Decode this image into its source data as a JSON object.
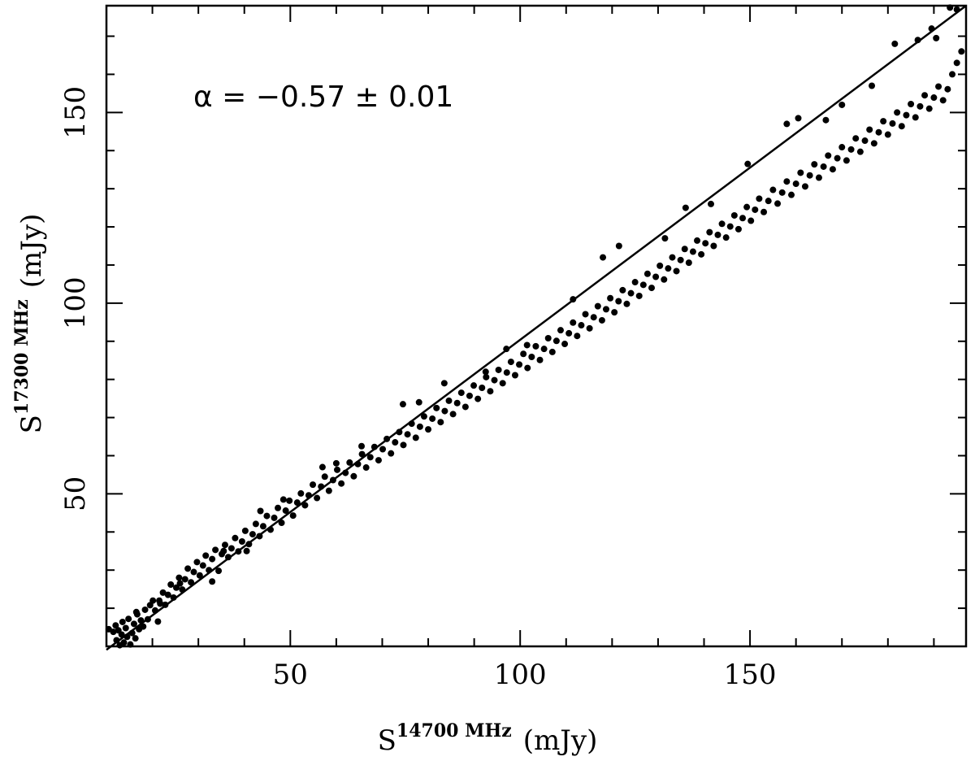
{
  "chart_data": {
    "type": "scatter",
    "title": "",
    "xlabel": {
      "base": "S",
      "superscript": "14700 MHz",
      "unit": "(mJy)"
    },
    "ylabel": {
      "base": "S",
      "superscript": "17300 MHz",
      "unit": "(mJy)"
    },
    "xlim": [
      10,
      197
    ],
    "ylim": [
      10,
      178
    ],
    "x_major_ticks": [
      50,
      100,
      150
    ],
    "x_tick_labels": [
      "50",
      "100",
      "150"
    ],
    "y_major_ticks": [
      50,
      100,
      150
    ],
    "y_tick_labels": [
      "50",
      "100",
      "150"
    ],
    "minor_tick_step": 10,
    "grid": false,
    "annotation": "α = −0.57 ± 0.01",
    "fit_line": {
      "x": [
        10,
        197
      ],
      "y": [
        9.1,
        178
      ]
    },
    "series": [
      {
        "marker": "dot",
        "color": "#000000",
        "points": [
          [
            10.5,
            14.5
          ],
          [
            11.5,
            13.8
          ],
          [
            12.0,
            15.5
          ],
          [
            12.2,
            11.6
          ],
          [
            12.6,
            14.2
          ],
          [
            12.9,
            10.3
          ],
          [
            13.3,
            13.1
          ],
          [
            13.5,
            16.4
          ],
          [
            13.8,
            11.0
          ],
          [
            14.2,
            14.8
          ],
          [
            14.5,
            12.5
          ],
          [
            14.8,
            17.2
          ],
          [
            15.2,
            10.5
          ],
          [
            15.6,
            13.5
          ],
          [
            16.0,
            15.9
          ],
          [
            16.3,
            12.1
          ],
          [
            16.7,
            18.4
          ],
          [
            17.1,
            14.5
          ],
          [
            17.5,
            16.8
          ],
          [
            18.0,
            15.2
          ],
          [
            18.4,
            19.6
          ],
          [
            19.0,
            17.1
          ],
          [
            19.5,
            20.8
          ],
          [
            20.1,
            22.0
          ],
          [
            20.6,
            19.4
          ],
          [
            21.2,
            16.5
          ],
          [
            21.7,
            21.2
          ],
          [
            22.3,
            24.1
          ],
          [
            22.8,
            20.9
          ],
          [
            23.4,
            23.5
          ],
          [
            24.0,
            26.2
          ],
          [
            24.6,
            22.8
          ],
          [
            25.2,
            25.4
          ],
          [
            25.8,
            28.0
          ],
          [
            26.5,
            24.9
          ],
          [
            27.1,
            27.6
          ],
          [
            27.7,
            30.4
          ],
          [
            28.4,
            26.8
          ],
          [
            29.0,
            29.5
          ],
          [
            29.7,
            32.1
          ],
          [
            30.3,
            28.6
          ],
          [
            31.0,
            31.2
          ],
          [
            31.6,
            33.8
          ],
          [
            32.3,
            30.0
          ],
          [
            33.0,
            32.9
          ],
          [
            33.7,
            35.3
          ],
          [
            34.4,
            29.8
          ],
          [
            35.1,
            34.2
          ],
          [
            35.8,
            36.6
          ],
          [
            36.5,
            33.4
          ],
          [
            37.2,
            35.7
          ],
          [
            38.0,
            38.4
          ],
          [
            38.7,
            34.9
          ],
          [
            39.5,
            37.5
          ],
          [
            40.2,
            40.3
          ],
          [
            41.0,
            36.8
          ],
          [
            41.8,
            39.4
          ],
          [
            42.5,
            42.1
          ],
          [
            43.3,
            38.9
          ],
          [
            44.1,
            41.5
          ],
          [
            44.9,
            44.2
          ],
          [
            45.7,
            40.6
          ],
          [
            46.5,
            43.7
          ],
          [
            47.3,
            46.3
          ],
          [
            48.1,
            42.4
          ],
          [
            49.0,
            45.6
          ],
          [
            49.8,
            48.2
          ],
          [
            50.6,
            44.3
          ],
          [
            51.5,
            47.7
          ],
          [
            52.3,
            50.1
          ],
          [
            53.2,
            47.0
          ],
          [
            54.0,
            49.6
          ],
          [
            54.9,
            52.4
          ],
          [
            55.8,
            48.9
          ],
          [
            56.7,
            51.9
          ],
          [
            57.5,
            54.5
          ],
          [
            58.4,
            50.8
          ],
          [
            59.3,
            53.6
          ],
          [
            60.2,
            56.3
          ],
          [
            61.1,
            52.7
          ],
          [
            62.0,
            55.5
          ],
          [
            62.9,
            58.2
          ],
          [
            63.8,
            54.6
          ],
          [
            64.7,
            57.8
          ],
          [
            65.6,
            60.4
          ],
          [
            66.5,
            56.9
          ],
          [
            67.4,
            59.6
          ],
          [
            68.3,
            62.3
          ],
          [
            69.2,
            58.8
          ],
          [
            70.1,
            61.7
          ],
          [
            71.0,
            64.4
          ],
          [
            71.9,
            60.6
          ],
          [
            72.8,
            63.5
          ],
          [
            73.7,
            66.2
          ],
          [
            74.6,
            62.8
          ],
          [
            75.5,
            65.6
          ],
          [
            76.4,
            68.4
          ],
          [
            77.3,
            64.7
          ],
          [
            78.2,
            67.6
          ],
          [
            79.1,
            70.3
          ],
          [
            80.0,
            66.9
          ],
          [
            80.9,
            69.7
          ],
          [
            81.8,
            72.5
          ],
          [
            82.7,
            68.8
          ],
          [
            83.6,
            71.7
          ],
          [
            84.5,
            74.4
          ],
          [
            85.4,
            70.9
          ],
          [
            86.3,
            73.8
          ],
          [
            87.2,
            76.5
          ],
          [
            88.1,
            72.8
          ],
          [
            89.0,
            75.7
          ],
          [
            89.9,
            78.4
          ],
          [
            90.8,
            74.9
          ],
          [
            91.7,
            77.8
          ],
          [
            92.6,
            80.6
          ],
          [
            93.5,
            76.9
          ],
          [
            94.4,
            79.8
          ],
          [
            95.3,
            82.5
          ],
          [
            96.2,
            79.0
          ],
          [
            97.1,
            81.8
          ],
          [
            98.0,
            84.6
          ],
          [
            98.9,
            81.1
          ],
          [
            99.8,
            83.9
          ],
          [
            100.7,
            86.7
          ],
          [
            101.6,
            83.0
          ],
          [
            102.5,
            85.9
          ],
          [
            103.4,
            88.7
          ],
          [
            104.3,
            85.1
          ],
          [
            105.2,
            88.0
          ],
          [
            106.1,
            90.8
          ],
          [
            107.0,
            87.2
          ],
          [
            107.9,
            90.1
          ],
          [
            108.8,
            92.9
          ],
          [
            109.7,
            89.3
          ],
          [
            110.6,
            92.1
          ],
          [
            111.5,
            94.9
          ],
          [
            112.4,
            91.4
          ],
          [
            113.3,
            94.2
          ],
          [
            114.2,
            97.1
          ],
          [
            115.1,
            93.4
          ],
          [
            116.0,
            96.3
          ],
          [
            116.9,
            99.2
          ],
          [
            117.8,
            95.5
          ],
          [
            118.7,
            98.4
          ],
          [
            119.6,
            101.3
          ],
          [
            120.5,
            97.6
          ],
          [
            121.4,
            100.5
          ],
          [
            122.3,
            103.4
          ],
          [
            123.2,
            99.8
          ],
          [
            124.1,
            102.6
          ],
          [
            125.0,
            105.5
          ],
          [
            125.9,
            101.9
          ],
          [
            126.8,
            104.8
          ],
          [
            127.7,
            107.7
          ],
          [
            128.6,
            104.0
          ],
          [
            129.5,
            106.9
          ],
          [
            130.4,
            109.8
          ],
          [
            131.3,
            106.2
          ],
          [
            132.2,
            109.1
          ],
          [
            133.1,
            112.0
          ],
          [
            134.0,
            108.4
          ],
          [
            134.9,
            111.3
          ],
          [
            135.8,
            114.2
          ],
          [
            136.7,
            110.6
          ],
          [
            137.6,
            113.5
          ],
          [
            138.5,
            116.4
          ],
          [
            139.4,
            112.8
          ],
          [
            140.3,
            115.7
          ],
          [
            141.2,
            118.6
          ],
          [
            142.1,
            115.0
          ],
          [
            143.0,
            117.9
          ],
          [
            143.9,
            120.8
          ],
          [
            144.8,
            117.2
          ],
          [
            145.7,
            120.1
          ],
          [
            146.6,
            123.0
          ],
          [
            147.5,
            119.4
          ],
          [
            148.4,
            122.3
          ],
          [
            149.3,
            125.2
          ],
          [
            150.2,
            121.6
          ],
          [
            151.1,
            124.5
          ],
          [
            152.0,
            127.4
          ],
          [
            153.0,
            123.9
          ],
          [
            154.0,
            126.8
          ],
          [
            155.0,
            129.7
          ],
          [
            156.0,
            126.1
          ],
          [
            157.0,
            129.0
          ],
          [
            158.0,
            131.9
          ],
          [
            159.0,
            128.4
          ],
          [
            160.0,
            131.3
          ],
          [
            161.0,
            134.2
          ],
          [
            162.0,
            130.6
          ],
          [
            163.0,
            133.5
          ],
          [
            164.0,
            136.4
          ],
          [
            165.0,
            132.9
          ],
          [
            166.0,
            135.8
          ],
          [
            167.0,
            138.7
          ],
          [
            168.0,
            135.1
          ],
          [
            169.0,
            138.0
          ],
          [
            170.0,
            140.9
          ],
          [
            171.0,
            137.4
          ],
          [
            172.0,
            140.3
          ],
          [
            173.0,
            143.2
          ],
          [
            174.0,
            139.7
          ],
          [
            175.0,
            142.6
          ],
          [
            176.0,
            145.5
          ],
          [
            177.0,
            141.9
          ],
          [
            178.0,
            144.8
          ],
          [
            179.0,
            147.7
          ],
          [
            180.0,
            144.2
          ],
          [
            181.0,
            147.1
          ],
          [
            182.0,
            150.0
          ],
          [
            183.0,
            146.4
          ],
          [
            184.0,
            149.3
          ],
          [
            185.0,
            152.2
          ],
          [
            186.0,
            148.7
          ],
          [
            187.0,
            151.6
          ],
          [
            188.0,
            154.5
          ],
          [
            189.0,
            151.0
          ],
          [
            190.0,
            153.9
          ],
          [
            191.0,
            156.8
          ],
          [
            192.0,
            153.2
          ],
          [
            193.0,
            156.1
          ],
          [
            194.0,
            160.0
          ],
          [
            195.0,
            163.0
          ],
          [
            196.0,
            166.0
          ],
          [
            189.5,
            172.0
          ],
          [
            190.5,
            169.5
          ],
          [
            195.0,
            177.0
          ],
          [
            193.5,
            177.5
          ],
          [
            181.5,
            168.0
          ],
          [
            176.5,
            157.0
          ],
          [
            166.5,
            148.0
          ],
          [
            160.5,
            148.5
          ],
          [
            149.5,
            136.5
          ],
          [
            141.5,
            126.0
          ],
          [
            131.5,
            117.0
          ],
          [
            121.5,
            115.0
          ],
          [
            111.5,
            101.0
          ],
          [
            101.5,
            89.0
          ],
          [
            92.5,
            82.0
          ],
          [
            83.5,
            79.0
          ],
          [
            74.5,
            73.5
          ],
          [
            65.5,
            62.5
          ],
          [
            57.0,
            57.0
          ],
          [
            48.5,
            48.5
          ],
          [
            40.5,
            35.0
          ],
          [
            33.0,
            27.0
          ],
          [
            26.0,
            26.5
          ],
          [
            21.5,
            22.0
          ],
          [
            16.5,
            19.0
          ],
          [
            35.5,
            35.0
          ],
          [
            43.5,
            45.5
          ],
          [
            60.0,
            58.0
          ],
          [
            78.0,
            74.0
          ],
          [
            97.0,
            88.0
          ],
          [
            118.0,
            112.0
          ],
          [
            136.0,
            125.0
          ],
          [
            158.0,
            147.0
          ],
          [
            170.0,
            152.0
          ],
          [
            186.5,
            169.0
          ]
        ]
      }
    ]
  }
}
